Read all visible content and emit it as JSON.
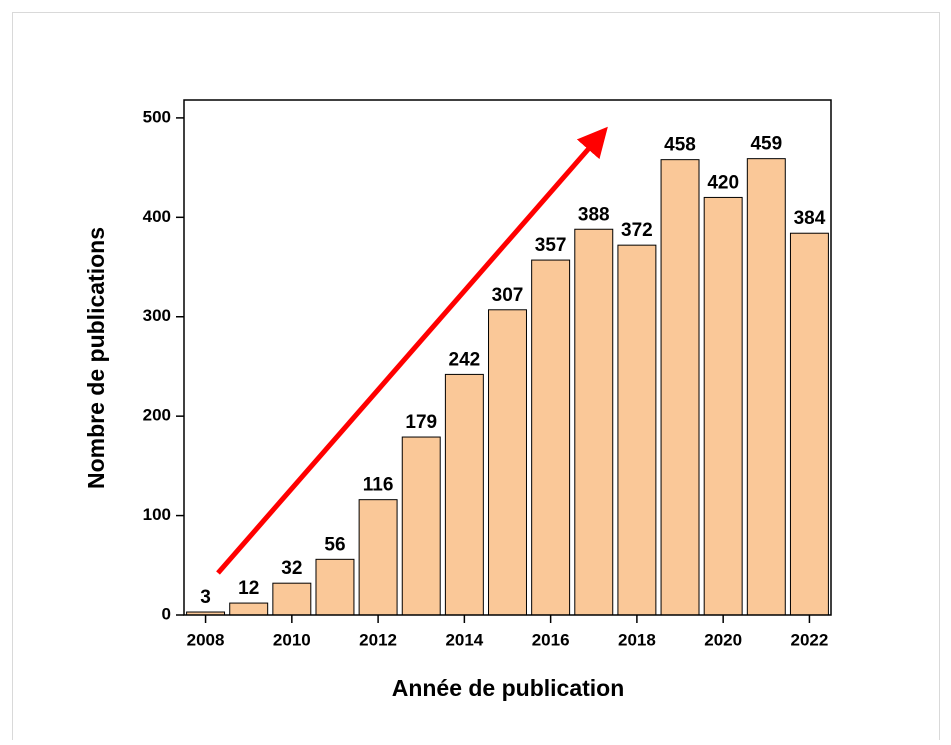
{
  "chart_data": {
    "type": "bar",
    "x_label": "Année de publication",
    "y_label": "Nombre de publications",
    "categories": [
      "2008",
      null,
      "2010",
      null,
      "2012",
      null,
      "2014",
      null,
      "2016",
      null,
      "2018",
      null,
      "2020",
      null,
      "2022"
    ],
    "values": [
      3,
      12,
      32,
      56,
      116,
      179,
      242,
      307,
      357,
      388,
      372,
      458,
      420,
      459,
      384
    ],
    "color": "#fac898",
    "ylim": [
      0,
      518
    ],
    "yticks": [
      0,
      100,
      200,
      300,
      400,
      500
    ]
  }
}
